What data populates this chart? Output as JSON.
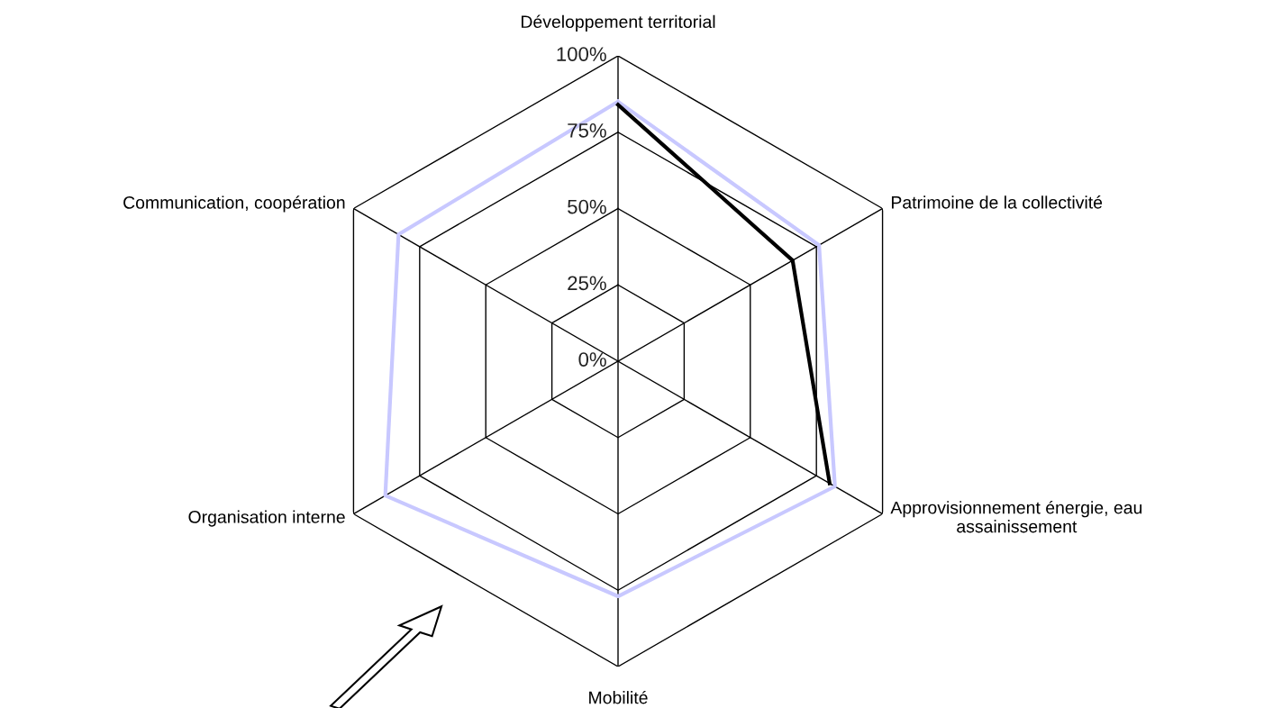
{
  "chart_data": {
    "type": "radar",
    "categories": [
      "Développement territorial",
      "Patrimoine de la collectivité",
      "Approvisionnement énergie, eau\nassainissement",
      "Mobilité",
      "Organisation interne",
      "Communication, coopération"
    ],
    "series": [
      {
        "color": "#c8c8ff",
        "values": [
          85,
          76,
          82,
          77,
          88,
          83
        ]
      },
      {
        "color": "#000000",
        "values": [
          84,
          66,
          80,
          null,
          null,
          null
        ]
      }
    ],
    "ylim": [
      0,
      100
    ],
    "yticks": [
      {
        "value": 0,
        "label": "0%"
      },
      {
        "value": 25,
        "label": "25%"
      },
      {
        "value": 50,
        "label": "50%"
      },
      {
        "value": 75,
        "label": "75%"
      },
      {
        "value": 100,
        "label": "100%"
      }
    ],
    "grid": true,
    "marker": "none",
    "line_style": "solid"
  }
}
